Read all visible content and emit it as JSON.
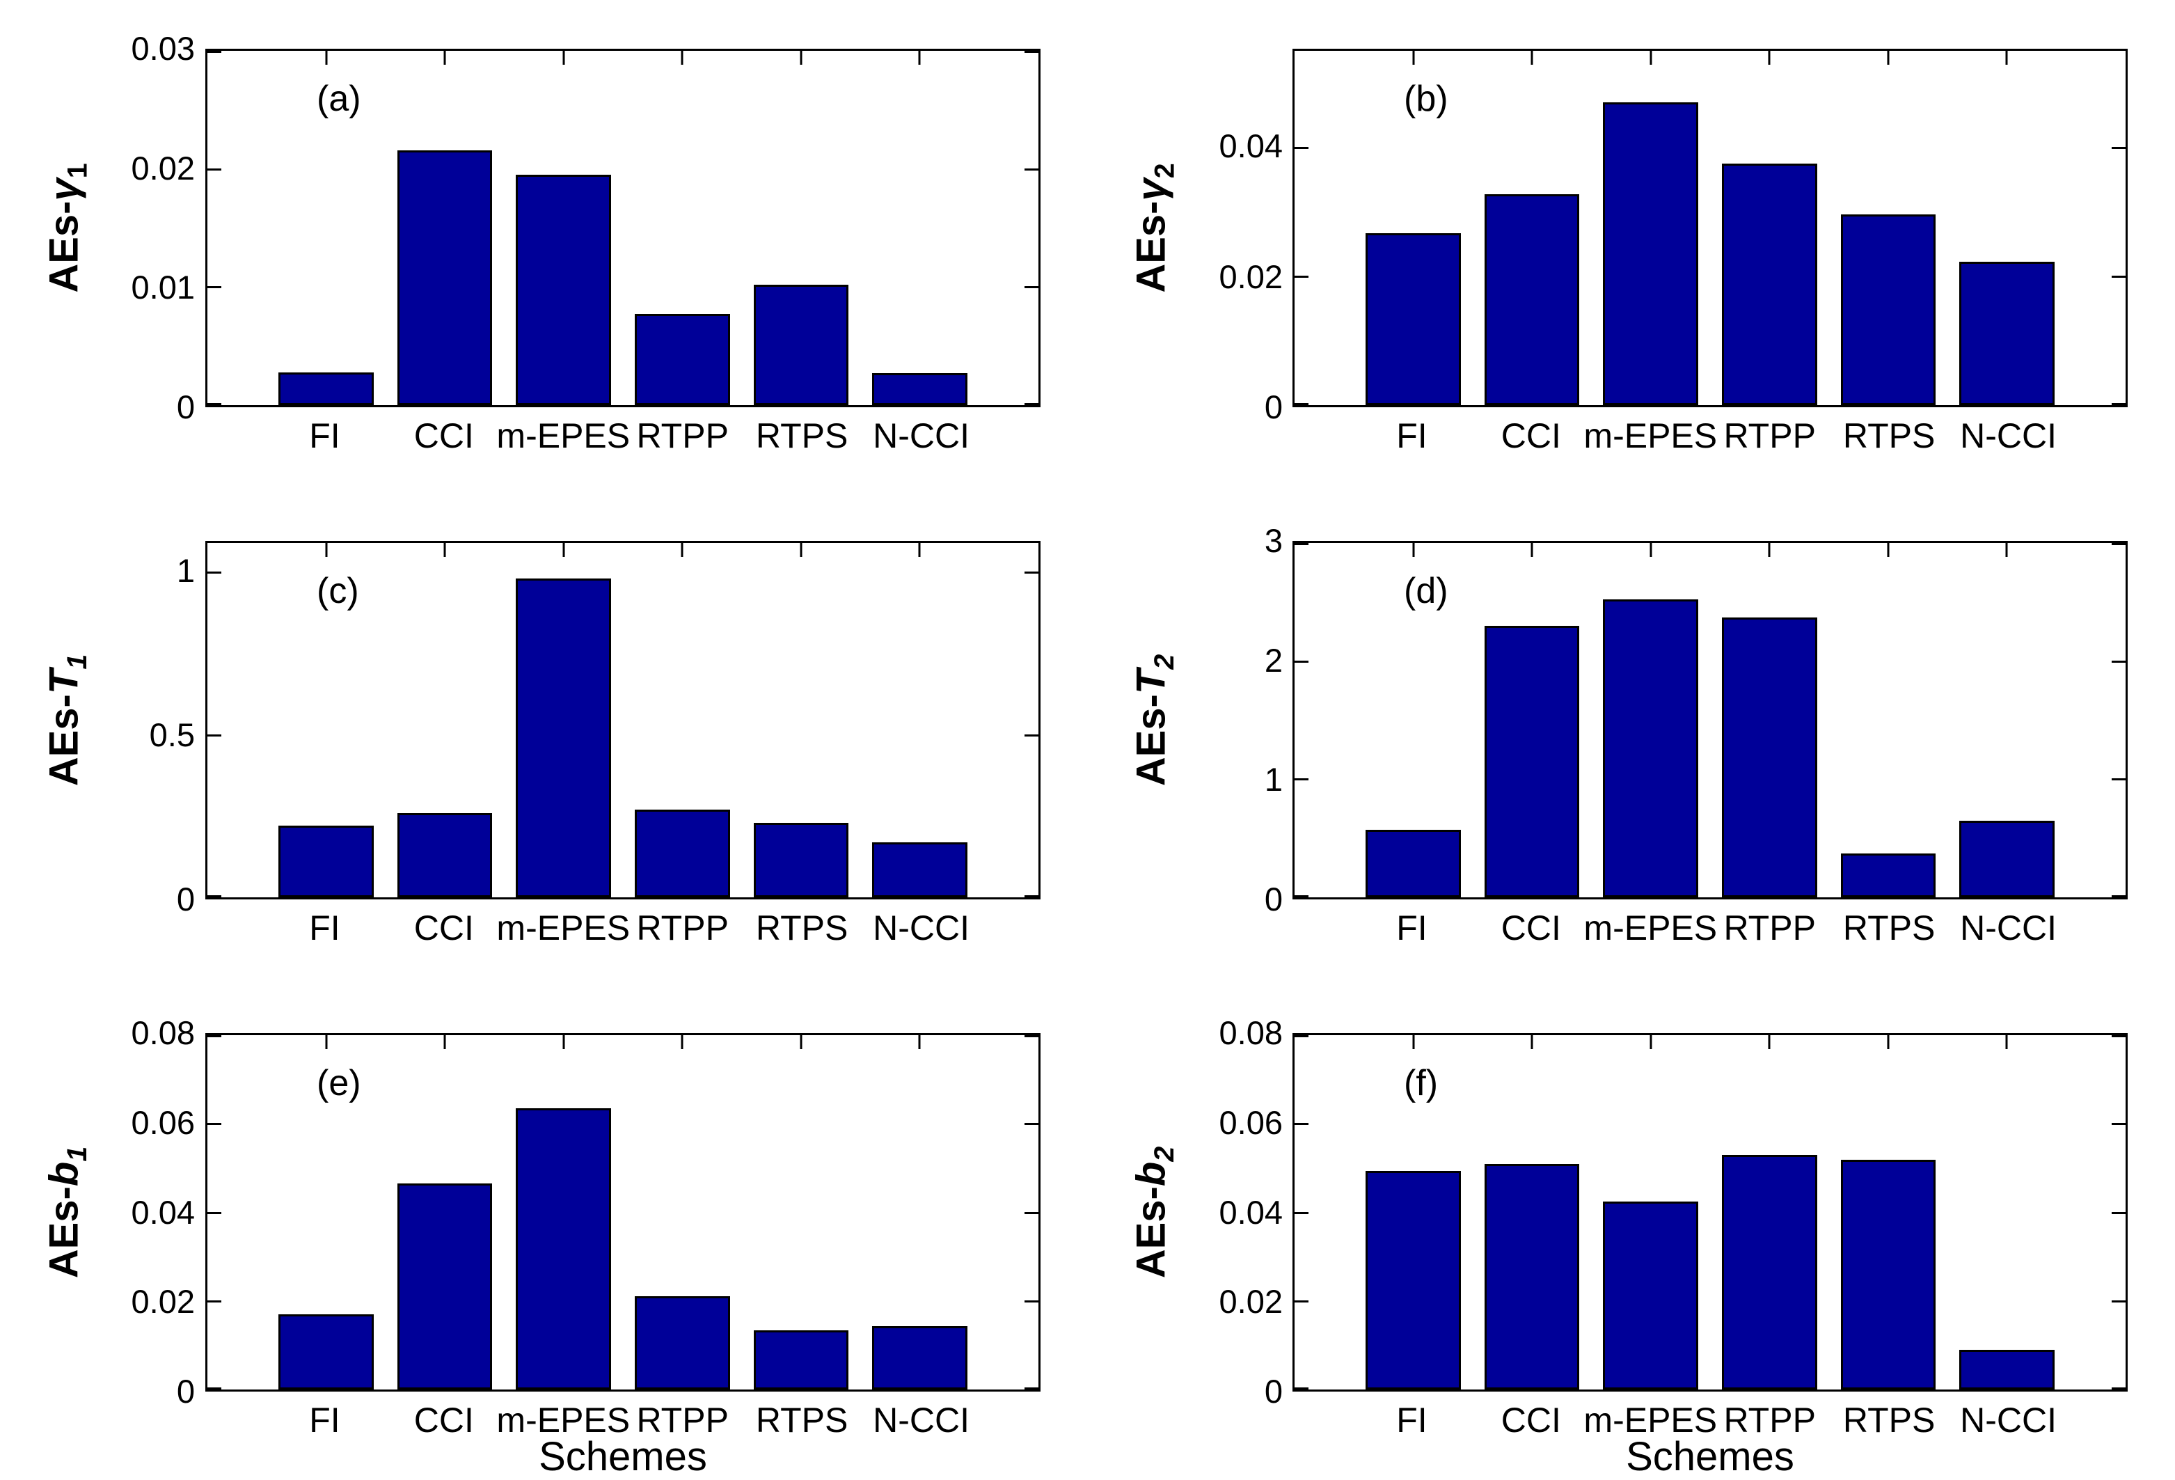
{
  "figure": {
    "background": "#ffffff",
    "bar_color": "#000098",
    "bar_edge_color": "#000000",
    "axis_color": "#000000",
    "shared_xlabel": "Schemes"
  },
  "chart_data": [
    {
      "type": "bar",
      "panel_label": "(a)",
      "ylabel": {
        "prefix": "AEs-",
        "symbol": "γ",
        "sub": "1",
        "italic_sub": false
      },
      "categories": [
        "FI",
        "CCI",
        "m-EPES",
        "RTPP",
        "RTPS",
        "N-CCI"
      ],
      "values": [
        0.0028,
        0.0216,
        0.0195,
        0.0077,
        0.0102,
        0.0027
      ],
      "ylim": [
        0,
        0.03
      ],
      "xlim": [
        0,
        7
      ],
      "yticks": [
        0,
        0.01,
        0.02,
        0.03
      ],
      "ytick_labels": [
        "0",
        "0.01",
        "0.02",
        "0.03"
      ],
      "xlabel": "",
      "grid": false,
      "legend": null
    },
    {
      "type": "bar",
      "panel_label": "(b)",
      "ylabel": {
        "prefix": "AEs-",
        "symbol": "γ",
        "sub": "2",
        "italic_sub": false
      },
      "categories": [
        "FI",
        "CCI",
        "m-EPES",
        "RTPP",
        "RTPS",
        "N-CCI"
      ],
      "values": [
        0.0267,
        0.0327,
        0.047,
        0.0375,
        0.0296,
        0.0223
      ],
      "ylim": [
        0,
        0.055
      ],
      "xlim": [
        0,
        7
      ],
      "yticks": [
        0,
        0.02,
        0.04
      ],
      "ytick_labels": [
        "0",
        "0.02",
        "0.04"
      ],
      "xlabel": "",
      "grid": false,
      "legend": null
    },
    {
      "type": "bar",
      "panel_label": "(c)",
      "ylabel": {
        "prefix": "AEs-",
        "symbol": "T",
        "sub": "1",
        "italic_sub": true
      },
      "categories": [
        "FI",
        "CCI",
        "m-EPES",
        "RTPP",
        "RTPS",
        "N-CCI"
      ],
      "values": [
        0.22,
        0.26,
        0.98,
        0.27,
        0.23,
        0.17
      ],
      "ylim": [
        0,
        1.09
      ],
      "xlim": [
        0,
        7
      ],
      "yticks": [
        0,
        0.5,
        1
      ],
      "ytick_labels": [
        "0",
        "0.5",
        "1"
      ],
      "xlabel": "",
      "grid": false,
      "legend": null
    },
    {
      "type": "bar",
      "panel_label": "(d)",
      "ylabel": {
        "prefix": "AEs-",
        "symbol": "T",
        "sub": "2",
        "italic_sub": true
      },
      "categories": [
        "FI",
        "CCI",
        "m-EPES",
        "RTPP",
        "RTPS",
        "N-CCI"
      ],
      "values": [
        0.57,
        2.3,
        2.52,
        2.37,
        0.37,
        0.65
      ],
      "ylim": [
        0,
        3
      ],
      "xlim": [
        0,
        7
      ],
      "yticks": [
        0,
        1,
        2,
        3
      ],
      "ytick_labels": [
        "0",
        "1",
        "2",
        "3"
      ],
      "xlabel": "",
      "grid": false,
      "legend": null
    },
    {
      "type": "bar",
      "panel_label": "(e)",
      "ylabel": {
        "prefix": "AEs-",
        "symbol": "b",
        "sub": "1",
        "italic_sub": true
      },
      "categories": [
        "FI",
        "CCI",
        "m-EPES",
        "RTPP",
        "RTPS",
        "N-CCI"
      ],
      "values": [
        0.017,
        0.0465,
        0.0635,
        0.021,
        0.0133,
        0.0143
      ],
      "ylim": [
        0,
        0.08
      ],
      "xlim": [
        0,
        7
      ],
      "yticks": [
        0,
        0.02,
        0.04,
        0.06,
        0.08
      ],
      "ytick_labels": [
        "0",
        "0.02",
        "0.04",
        "0.06",
        "0.08"
      ],
      "xlabel": "Schemes",
      "grid": false,
      "legend": null
    },
    {
      "type": "bar",
      "panel_label": "(f)",
      "ylabel": {
        "prefix": "AEs-",
        "symbol": "b",
        "sub": "2",
        "italic_sub": true
      },
      "categories": [
        "FI",
        "CCI",
        "m-EPES",
        "RTPP",
        "RTPS",
        "N-CCI"
      ],
      "values": [
        0.0493,
        0.051,
        0.0425,
        0.0529,
        0.0519,
        0.0089
      ],
      "ylim": [
        0,
        0.08
      ],
      "xlim": [
        0,
        7
      ],
      "yticks": [
        0,
        0.02,
        0.04,
        0.06,
        0.08
      ],
      "ytick_labels": [
        "0",
        "0.02",
        "0.04",
        "0.06",
        "0.08"
      ],
      "xlabel": "Schemes",
      "grid": false,
      "legend": null
    }
  ]
}
